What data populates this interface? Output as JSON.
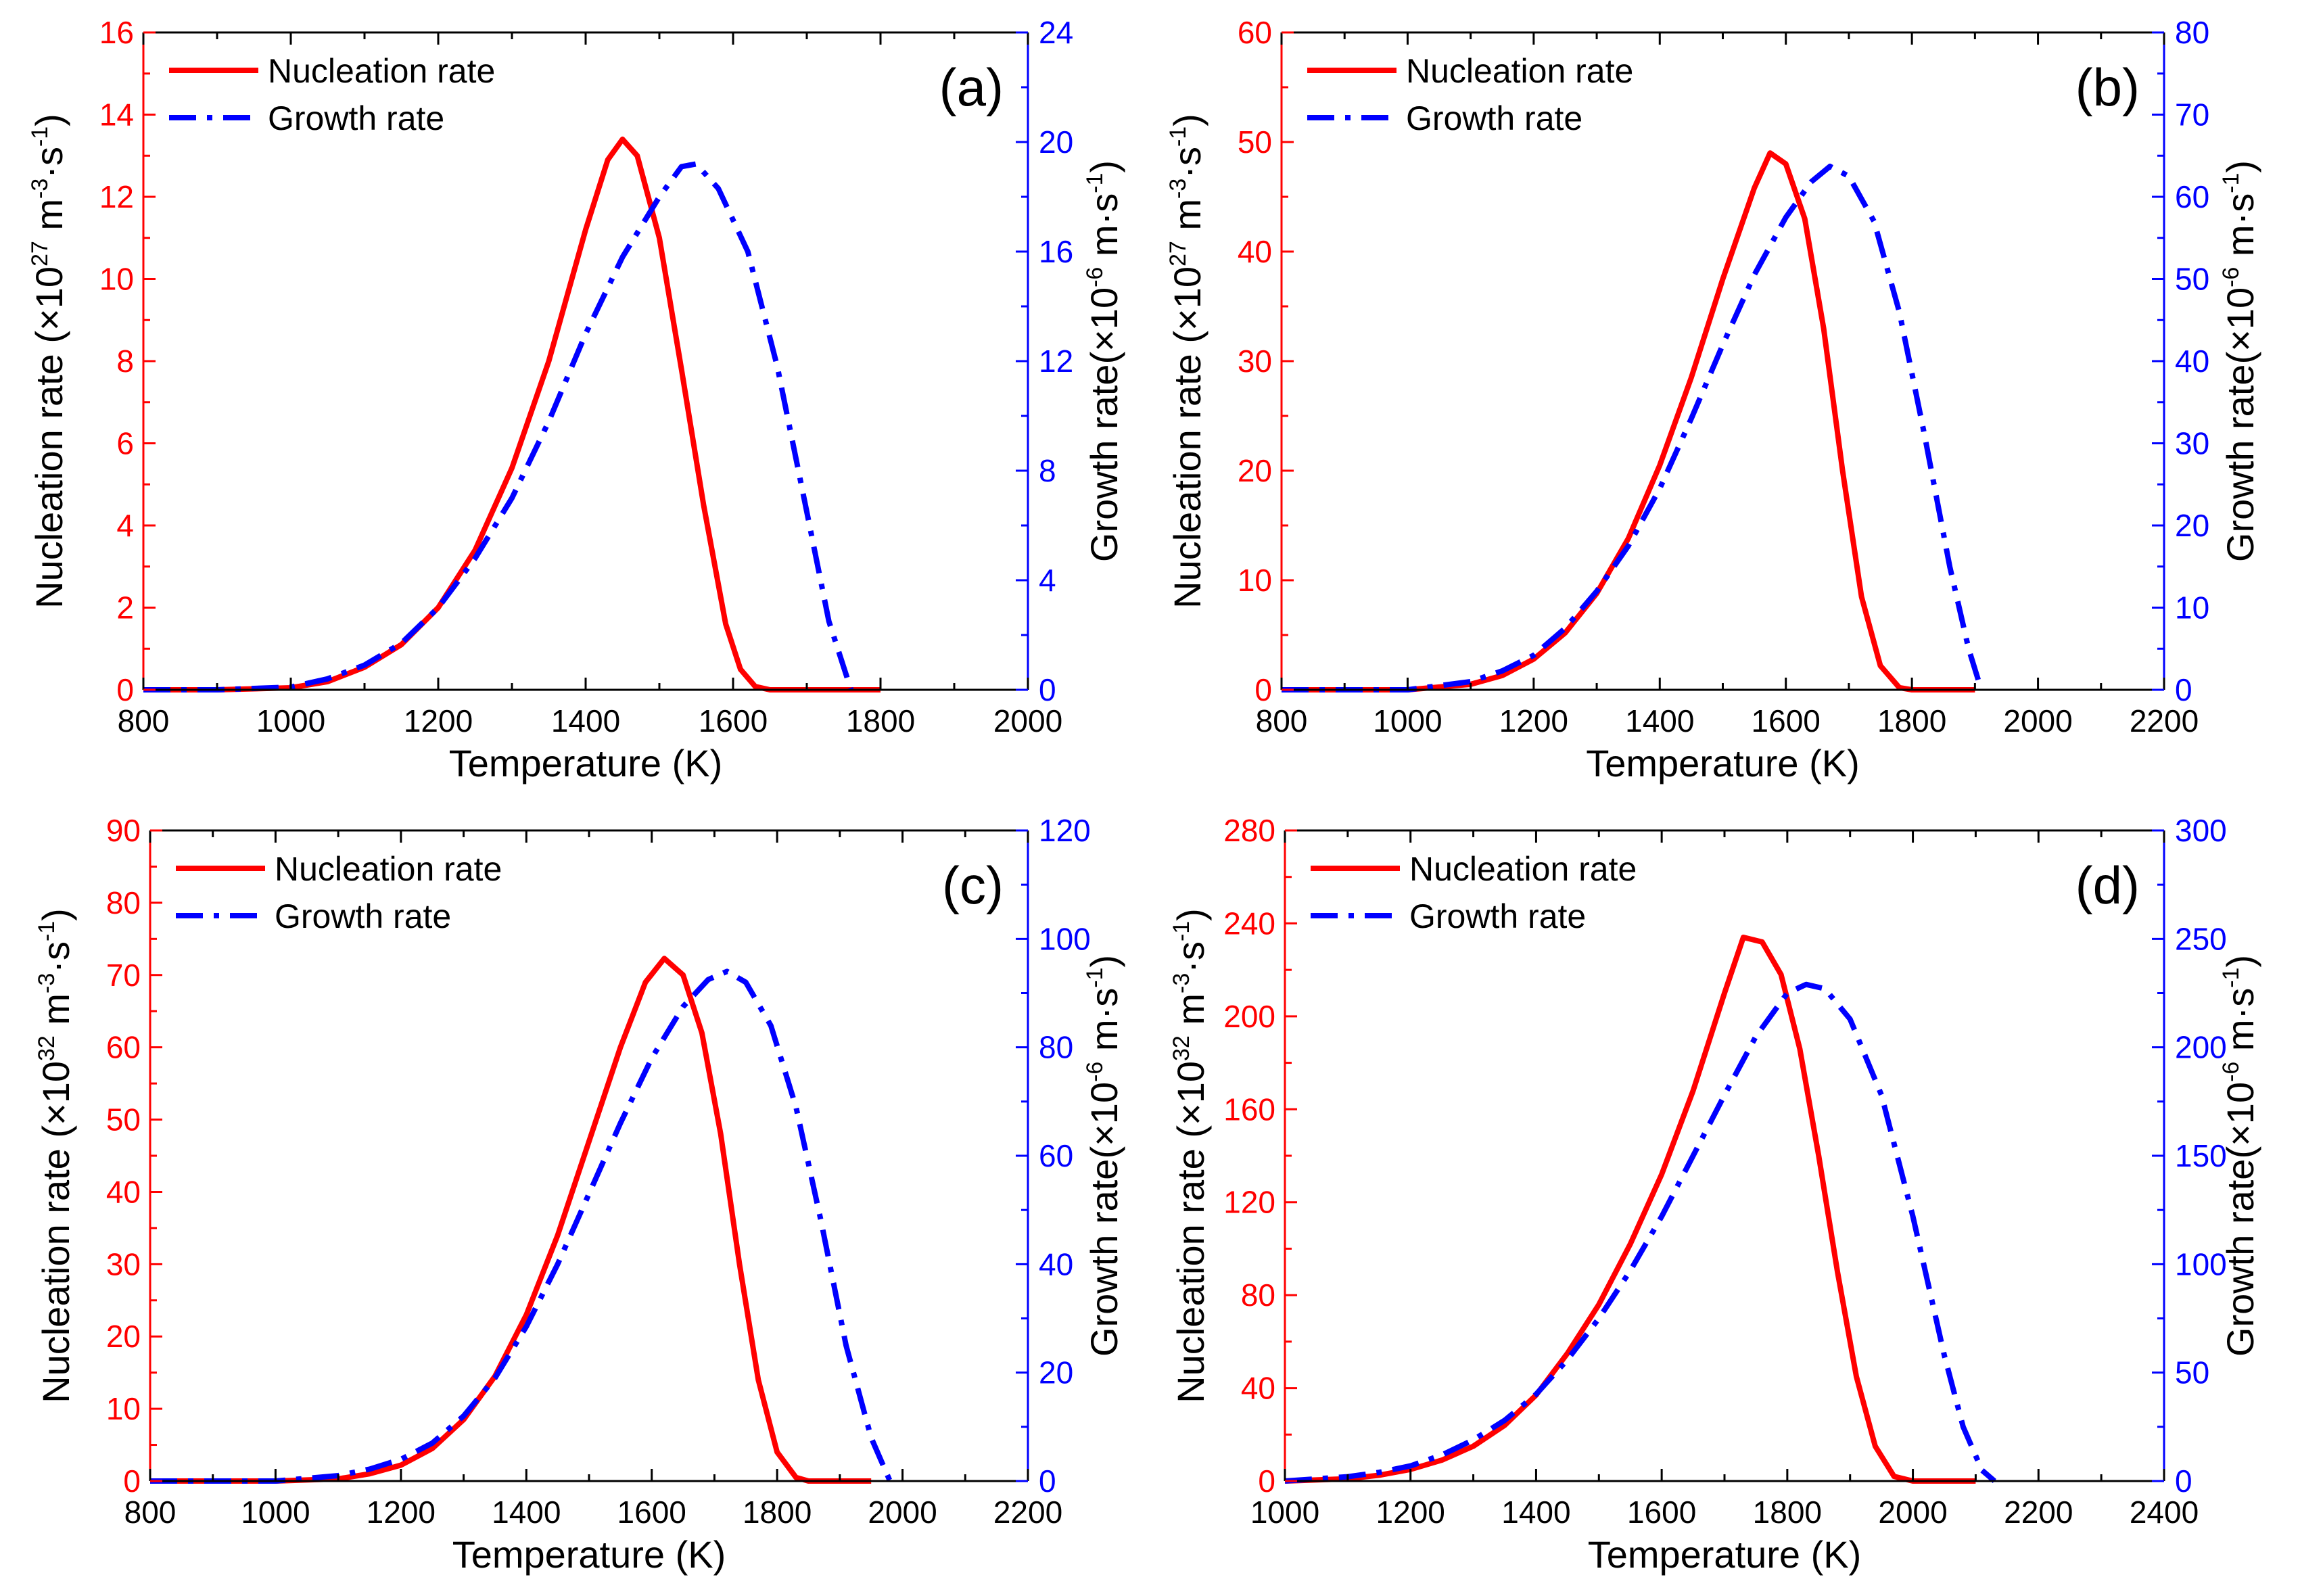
{
  "chart_data": [
    {
      "type": "line",
      "panel_label": "(a)",
      "xlabel": "Temperature (K)",
      "ylabel_left": "Nucleation rate (×10",
      "ylabel_left_exp": "27",
      "ylabel_left_units": " m",
      "ylabel_left_units_exp1": "-3",
      "ylabel_left_units_mid": "·s",
      "ylabel_left_units_exp2": "-1",
      "ylabel_left_close": ")",
      "ylabel_right": "Growth rate(×10",
      "ylabel_right_exp": "-6",
      "ylabel_right_units": " m·s",
      "ylabel_right_units_exp": "-1",
      "ylabel_right_close": ")",
      "xlim": [
        800,
        2000
      ],
      "ylim_left": [
        0,
        16
      ],
      "ylim_right": [
        0,
        24
      ],
      "xticks": [
        800,
        1000,
        1200,
        1400,
        1600,
        1800,
        2000
      ],
      "yticks_left": [
        0,
        2,
        4,
        6,
        8,
        10,
        12,
        14,
        16
      ],
      "yticks_right": [
        0,
        4,
        8,
        12,
        16,
        20,
        24
      ],
      "legend": [
        {
          "name": "Nucleation rate"
        },
        {
          "name": "Growth rate"
        }
      ],
      "series": [
        {
          "name": "Nucleation rate",
          "axis": "left",
          "color": "#ff0000",
          "style": "solid",
          "x": [
            800,
            900,
            1000,
            1050,
            1100,
            1150,
            1200,
            1250,
            1300,
            1350,
            1400,
            1430,
            1450,
            1470,
            1500,
            1530,
            1560,
            1590,
            1610,
            1630,
            1650,
            1700,
            1800
          ],
          "y": [
            0,
            0,
            0.05,
            0.2,
            0.55,
            1.1,
            2.0,
            3.4,
            5.4,
            8.0,
            11.2,
            12.9,
            13.4,
            13.0,
            11.0,
            7.8,
            4.5,
            1.6,
            0.5,
            0.08,
            0,
            0,
            0
          ]
        },
        {
          "name": "Growth rate",
          "axis": "right",
          "color": "#0000ff",
          "style": "dashdot",
          "x": [
            800,
            900,
            1000,
            1050,
            1100,
            1150,
            1200,
            1250,
            1300,
            1350,
            1400,
            1450,
            1500,
            1530,
            1550,
            1580,
            1620,
            1660,
            1700,
            1730,
            1760
          ],
          "y": [
            0,
            0,
            0.1,
            0.4,
            0.9,
            1.7,
            3.0,
            4.8,
            7.0,
            9.8,
            13.0,
            15.8,
            18.0,
            19.1,
            19.2,
            18.3,
            16.0,
            11.8,
            6.5,
            2.5,
            0
          ]
        }
      ]
    },
    {
      "type": "line",
      "panel_label": "(b)",
      "xlabel": "Temperature (K)",
      "ylabel_left": "Nucleation rate (×10",
      "ylabel_left_exp": "27",
      "ylabel_left_units": " m",
      "ylabel_left_units_exp1": "-3",
      "ylabel_left_units_mid": "·s",
      "ylabel_left_units_exp2": "-1",
      "ylabel_left_close": ")",
      "ylabel_right": "Growth rate(×10",
      "ylabel_right_exp": "-6",
      "ylabel_right_units": " m·s",
      "ylabel_right_units_exp": "-1",
      "ylabel_right_close": ")",
      "xlim": [
        800,
        2200
      ],
      "ylim_left": [
        0,
        60
      ],
      "ylim_right": [
        0,
        80
      ],
      "xticks": [
        800,
        1000,
        1200,
        1400,
        1600,
        1800,
        2000,
        2200
      ],
      "yticks_left": [
        0,
        10,
        20,
        30,
        40,
        50,
        60
      ],
      "yticks_right": [
        0,
        10,
        20,
        30,
        40,
        50,
        60,
        70,
        80
      ],
      "legend": [
        {
          "name": "Nucleation rate"
        },
        {
          "name": "Growth rate"
        }
      ],
      "series": [
        {
          "name": "Nucleation rate",
          "axis": "left",
          "color": "#ff0000",
          "style": "solid",
          "x": [
            800,
            1000,
            1100,
            1150,
            1200,
            1250,
            1300,
            1350,
            1400,
            1450,
            1500,
            1550,
            1575,
            1600,
            1630,
            1660,
            1690,
            1720,
            1750,
            1780,
            1800,
            1900
          ],
          "y": [
            0,
            0,
            0.5,
            1.3,
            2.8,
            5.2,
            8.8,
            13.8,
            20.5,
            28.5,
            37.5,
            45.8,
            49.0,
            48.0,
            43.0,
            33.0,
            20.0,
            8.5,
            2.2,
            0.2,
            0,
            0
          ]
        },
        {
          "name": "Growth rate",
          "axis": "right",
          "color": "#0000ff",
          "style": "dashdot",
          "x": [
            800,
            1000,
            1100,
            1150,
            1200,
            1250,
            1300,
            1350,
            1400,
            1450,
            1500,
            1550,
            1600,
            1640,
            1670,
            1700,
            1740,
            1780,
            1820,
            1860,
            1890,
            1910
          ],
          "y": [
            0,
            0,
            1.0,
            2.3,
            4.2,
            7.5,
            12.0,
            17.5,
            24.5,
            33.0,
            42.0,
            50.5,
            57.5,
            61.8,
            63.7,
            62.5,
            57.0,
            46.0,
            31.0,
            15.0,
            5.0,
            0
          ]
        }
      ]
    },
    {
      "type": "line",
      "panel_label": "(c)",
      "xlabel": "Temperature (K)",
      "ylabel_left": "Nucleation rate (×10",
      "ylabel_left_exp": "32",
      "ylabel_left_units": " m",
      "ylabel_left_units_exp1": "-3",
      "ylabel_left_units_mid": "·s",
      "ylabel_left_units_exp2": "-1",
      "ylabel_left_close": ")",
      "ylabel_right": "Growth rate(×10",
      "ylabel_right_exp": "-6",
      "ylabel_right_units": " m·s",
      "ylabel_right_units_exp": "-1",
      "ylabel_right_close": ")",
      "xlim": [
        800,
        2200
      ],
      "ylim_left": [
        0,
        90
      ],
      "ylim_right": [
        0,
        120
      ],
      "xticks": [
        800,
        1000,
        1200,
        1400,
        1600,
        1800,
        2000,
        2200
      ],
      "yticks_left": [
        0,
        10,
        20,
        30,
        40,
        50,
        60,
        70,
        80,
        90
      ],
      "yticks_right": [
        0,
        20,
        40,
        60,
        80,
        100,
        120
      ],
      "legend": [
        {
          "name": "Nucleation rate"
        },
        {
          "name": "Growth rate"
        }
      ],
      "series": [
        {
          "name": "Nucleation rate",
          "axis": "left",
          "color": "#ff0000",
          "style": "solid",
          "x": [
            800,
            1000,
            1100,
            1150,
            1200,
            1250,
            1300,
            1350,
            1400,
            1450,
            1500,
            1550,
            1590,
            1620,
            1650,
            1680,
            1710,
            1740,
            1770,
            1800,
            1830,
            1850,
            1950
          ],
          "y": [
            0,
            0,
            0.3,
            1.0,
            2.2,
            4.5,
            8.5,
            14.5,
            23.0,
            34.0,
            47.0,
            60.0,
            69.0,
            72.3,
            70.0,
            62.0,
            48.0,
            30.0,
            14.0,
            4.0,
            0.5,
            0,
            0
          ]
        },
        {
          "name": "Growth rate",
          "axis": "right",
          "color": "#0000ff",
          "style": "dashdot",
          "x": [
            800,
            1000,
            1100,
            1150,
            1200,
            1250,
            1300,
            1350,
            1400,
            1450,
            1500,
            1550,
            1600,
            1650,
            1690,
            1720,
            1750,
            1790,
            1830,
            1870,
            1910,
            1950,
            1980
          ],
          "y": [
            0,
            0,
            1.0,
            2.2,
            4.0,
            7.0,
            12.0,
            19.0,
            28.5,
            40.0,
            53.0,
            66.0,
            78.0,
            87.5,
            92.5,
            94.0,
            92.0,
            84.0,
            69.0,
            48.0,
            25.0,
            8.0,
            0
          ]
        }
      ]
    },
    {
      "type": "line",
      "panel_label": "(d)",
      "xlabel": "Temperature (K)",
      "ylabel_left": "Nucleation rate (×10",
      "ylabel_left_exp": "32",
      "ylabel_left_units": " m",
      "ylabel_left_units_exp1": "-3",
      "ylabel_left_units_mid": "·s",
      "ylabel_left_units_exp2": "-1",
      "ylabel_left_close": ")",
      "ylabel_right": "Growth rate(×10",
      "ylabel_right_exp": "-6",
      "ylabel_right_units": " m·s",
      "ylabel_right_units_exp": "-1",
      "ylabel_right_close": ")",
      "xlim": [
        1000,
        2400
      ],
      "ylim_left": [
        0,
        280
      ],
      "ylim_right": [
        0,
        300
      ],
      "xticks": [
        1000,
        1200,
        1400,
        1600,
        1800,
        2000,
        2200,
        2400
      ],
      "yticks_left": [
        0,
        40,
        80,
        120,
        160,
        200,
        240,
        280
      ],
      "yticks_right": [
        0,
        50,
        100,
        150,
        200,
        250,
        300
      ],
      "legend": [
        {
          "name": "Nucleation rate"
        },
        {
          "name": "Growth rate"
        }
      ],
      "series": [
        {
          "name": "Nucleation rate",
          "axis": "left",
          "color": "#ff0000",
          "style": "solid",
          "x": [
            1000,
            1100,
            1150,
            1200,
            1250,
            1300,
            1350,
            1400,
            1450,
            1500,
            1550,
            1600,
            1650,
            1700,
            1730,
            1760,
            1790,
            1820,
            1850,
            1880,
            1910,
            1940,
            1970,
            2000,
            2100
          ],
          "y": [
            0,
            1,
            2.5,
            5,
            9,
            15,
            24,
            37,
            55,
            76,
            102,
            132,
            168,
            210,
            234,
            232,
            218,
            186,
            140,
            90,
            45,
            15,
            2,
            0,
            0
          ]
        },
        {
          "name": "Growth rate",
          "axis": "right",
          "color": "#0000ff",
          "style": "dashdot",
          "x": [
            1000,
            1100,
            1150,
            1200,
            1250,
            1300,
            1350,
            1400,
            1450,
            1500,
            1550,
            1600,
            1650,
            1700,
            1750,
            1800,
            1830,
            1860,
            1900,
            1950,
            2000,
            2050,
            2080,
            2110,
            2130
          ],
          "y": [
            0,
            2,
            4,
            7,
            12,
            19,
            28,
            40,
            56,
            75,
            97,
            122,
            150,
            178,
            205,
            225,
            229,
            227,
            213,
            178,
            122,
            58,
            25,
            5,
            0
          ]
        }
      ]
    }
  ]
}
